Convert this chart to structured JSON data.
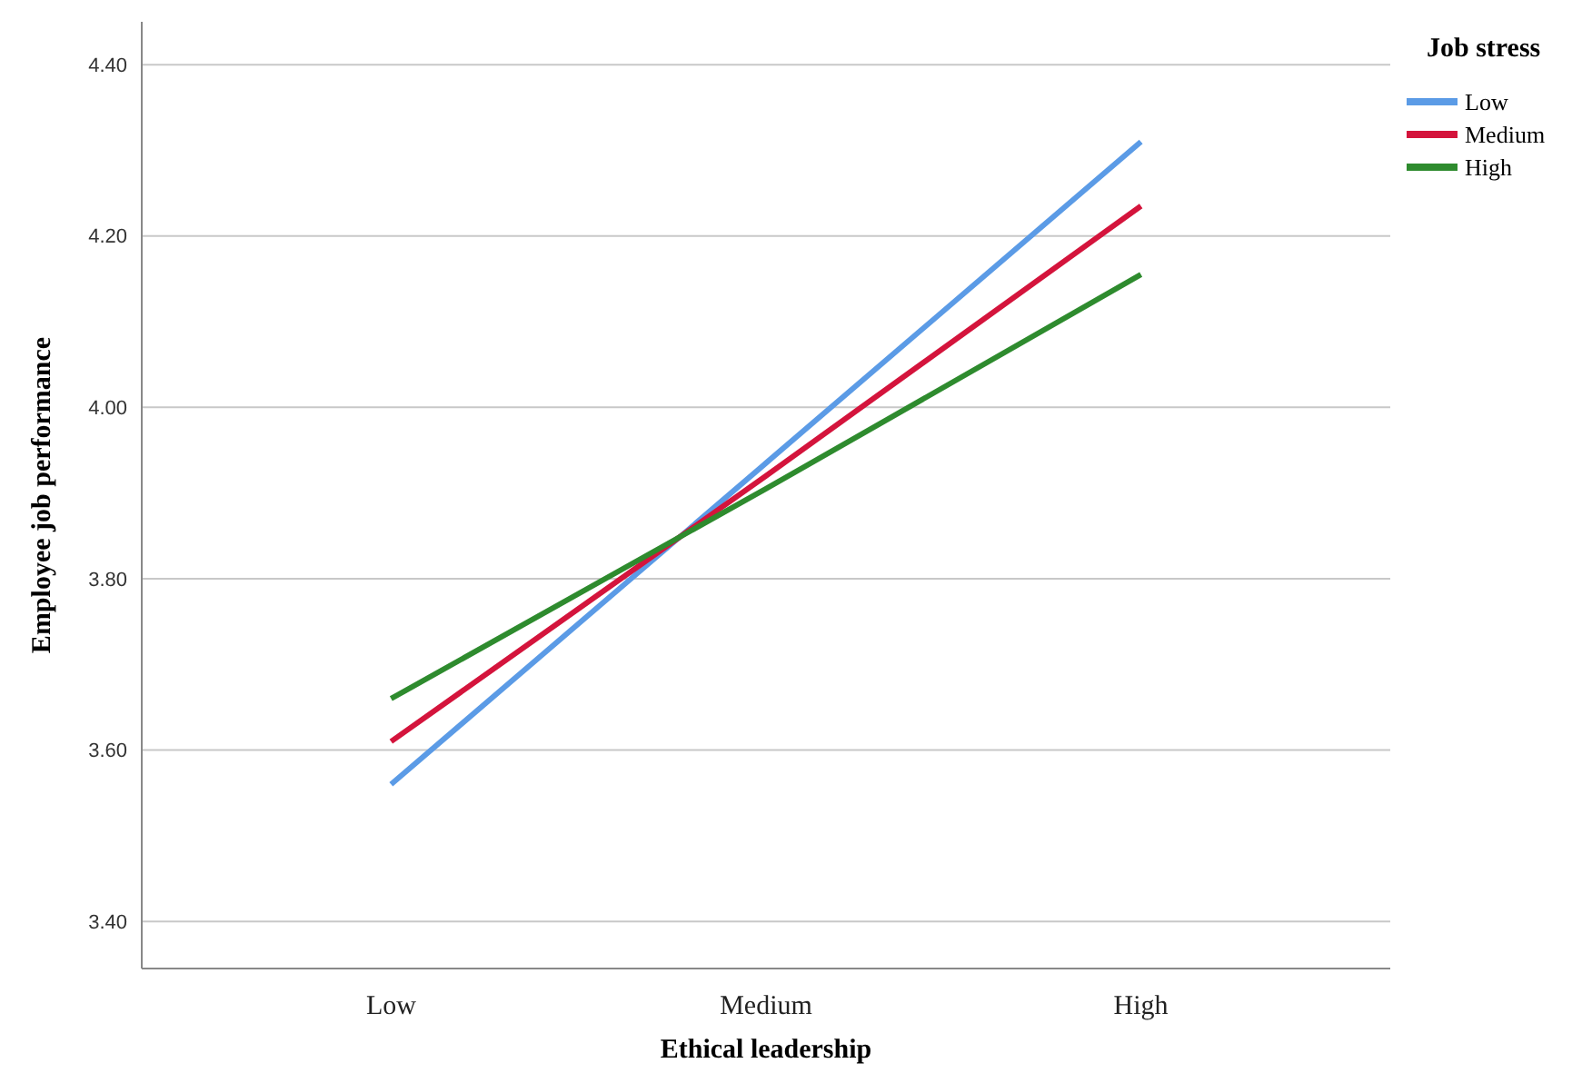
{
  "chart_data": {
    "type": "line",
    "xlabel": "Ethical leadership",
    "ylabel": "Employee job performance",
    "legend_title": "Job stress",
    "categories": [
      "Low",
      "Medium",
      "High"
    ],
    "series": [
      {
        "name": "Low",
        "color": "#5b9be6",
        "values": [
          3.56,
          3.935,
          4.31
        ]
      },
      {
        "name": "Medium",
        "color": "#d4143c",
        "values": [
          3.61,
          3.92,
          4.235
        ]
      },
      {
        "name": "High",
        "color": "#2e8b2e",
        "values": [
          3.66,
          3.905,
          4.155
        ]
      }
    ],
    "ylim": [
      3.345,
      4.45
    ],
    "yticks": [
      {
        "value": 3.4,
        "label": "3.40"
      },
      {
        "value": 3.6,
        "label": "3.60"
      },
      {
        "value": 3.8,
        "label": "3.80"
      },
      {
        "value": 4.0,
        "label": "4.00"
      },
      {
        "value": 4.2,
        "label": "4.20"
      },
      {
        "value": 4.4,
        "label": "4.40"
      }
    ],
    "grid": "y",
    "legend": "top right",
    "marker": "none",
    "line_style": "solid"
  }
}
